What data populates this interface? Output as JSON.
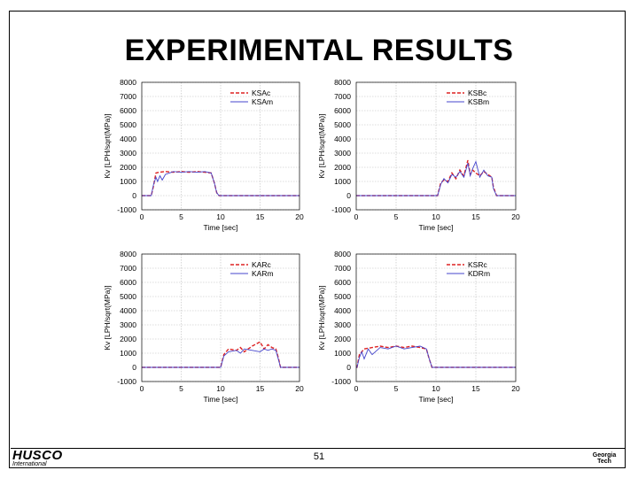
{
  "slide": {
    "title": "EXPERIMENTAL RESULTS",
    "page_number": "51",
    "logo_left": {
      "brand": "HUSCO",
      "sub": "International"
    },
    "logo_right": {
      "line1": "Georgia",
      "line2": "Tech"
    }
  },
  "chart_data": [
    {
      "type": "line",
      "xlabel": "Time [sec]",
      "ylabel": "Kv [LPH/sqrt(MPa)]",
      "xlim": [
        0,
        20
      ],
      "ylim": [
        -1000,
        8000
      ],
      "xticks": [
        0,
        5,
        10,
        15,
        20
      ],
      "yticks": [
        -1000,
        0,
        1000,
        2000,
        3000,
        4000,
        5000,
        6000,
        7000,
        8000
      ],
      "grid": true,
      "legend_position": "top-right",
      "series": [
        {
          "name": "KSAc",
          "color": "#dd2222",
          "style": "dashed",
          "x": [
            0,
            1.2,
            1.5,
            1.8,
            2.2,
            3,
            4,
            5,
            6,
            7,
            8,
            8.8,
            9.2,
            9.5,
            9.8,
            20
          ],
          "y": [
            0,
            0,
            700,
            1600,
            1650,
            1700,
            1650,
            1700,
            1650,
            1700,
            1650,
            1600,
            900,
            200,
            0,
            0
          ]
        },
        {
          "name": "KSAm",
          "color": "#4444cc",
          "style": "solid",
          "x": [
            0,
            1.2,
            1.5,
            1.8,
            2.0,
            2.3,
            2.6,
            3,
            3.5,
            4,
            5,
            6,
            7,
            8,
            8.8,
            9.2,
            9.5,
            9.8,
            20
          ],
          "y": [
            0,
            0,
            800,
            1300,
            1000,
            1400,
            1100,
            1500,
            1600,
            1700,
            1650,
            1700,
            1650,
            1700,
            1600,
            900,
            200,
            0,
            0
          ]
        }
      ]
    },
    {
      "type": "line",
      "xlabel": "Time [sec]",
      "ylabel": "Kv [LPH/sqrt(MPa)]",
      "xlim": [
        0,
        20
      ],
      "ylim": [
        -1000,
        8000
      ],
      "xticks": [
        0,
        5,
        10,
        15,
        20
      ],
      "yticks": [
        -1000,
        0,
        1000,
        2000,
        3000,
        4000,
        5000,
        6000,
        7000,
        8000
      ],
      "grid": true,
      "legend_position": "top-right",
      "series": [
        {
          "name": "KSBc",
          "color": "#dd2222",
          "style": "dashed",
          "x": [
            0,
            10.2,
            10.6,
            11,
            11.5,
            12,
            12.5,
            13,
            13.5,
            14,
            14.3,
            14.6,
            15,
            15.5,
            16,
            16.5,
            17,
            17.2,
            17.6,
            20
          ],
          "y": [
            0,
            0,
            900,
            1100,
            1000,
            1600,
            1200,
            1800,
            1400,
            2500,
            1500,
            1800,
            1600,
            1400,
            1700,
            1500,
            1300,
            600,
            0,
            0
          ]
        },
        {
          "name": "KSBm",
          "color": "#4444cc",
          "style": "solid",
          "x": [
            0,
            10.2,
            10.6,
            11,
            11.5,
            12,
            12.5,
            13,
            13.5,
            14,
            14.3,
            14.6,
            15,
            15.5,
            16,
            16.5,
            17,
            17.2,
            17.6,
            20
          ],
          "y": [
            0,
            0,
            800,
            1200,
            900,
            1500,
            1300,
            1700,
            1300,
            2300,
            1400,
            1900,
            2400,
            1300,
            1800,
            1400,
            1300,
            500,
            0,
            0
          ]
        }
      ]
    },
    {
      "type": "line",
      "xlabel": "Time [sec]",
      "ylabel": "Kv [LPH/sqrt(MPa)]",
      "xlim": [
        0,
        20
      ],
      "ylim": [
        -1000,
        8000
      ],
      "xticks": [
        0,
        5,
        10,
        15,
        20
      ],
      "yticks": [
        -1000,
        0,
        1000,
        2000,
        3000,
        4000,
        5000,
        6000,
        7000,
        8000
      ],
      "grid": true,
      "legend_position": "top-right",
      "series": [
        {
          "name": "KARc",
          "color": "#dd2222",
          "style": "dashed",
          "x": [
            0,
            10,
            10.4,
            11,
            12,
            12.5,
            13,
            14,
            15,
            15.5,
            16,
            16.5,
            17,
            17.3,
            17.6,
            20
          ],
          "y": [
            0,
            0,
            900,
            1300,
            1200,
            1400,
            1100,
            1500,
            1800,
            1300,
            1600,
            1400,
            1300,
            700,
            0,
            0
          ]
        },
        {
          "name": "KARm",
          "color": "#4444cc",
          "style": "solid",
          "x": [
            0,
            10,
            10.4,
            11,
            12,
            12.5,
            13,
            14,
            15,
            15.5,
            16,
            16.5,
            17,
            17.3,
            17.6,
            20
          ],
          "y": [
            0,
            0,
            800,
            1100,
            1200,
            1000,
            1300,
            1200,
            1100,
            1300,
            1200,
            1300,
            1200,
            600,
            0,
            0
          ]
        }
      ]
    },
    {
      "type": "line",
      "xlabel": "Time [sec]",
      "ylabel": "Kv [LPH/sqrt(MPa)]",
      "xlim": [
        0,
        20
      ],
      "ylim": [
        -1000,
        8000
      ],
      "xticks": [
        0,
        5,
        10,
        15,
        20
      ],
      "yticks": [
        -1000,
        0,
        1000,
        2000,
        3000,
        4000,
        5000,
        6000,
        7000,
        8000
      ],
      "grid": true,
      "legend_position": "top-right",
      "series": [
        {
          "name": "KSRc",
          "color": "#dd2222",
          "style": "dashed",
          "x": [
            0,
            0.1,
            0.4,
            1,
            2,
            3,
            4,
            5,
            6,
            7,
            8,
            8.8,
            9.1,
            9.5,
            20
          ],
          "y": [
            0,
            0,
            900,
            1300,
            1400,
            1500,
            1400,
            1500,
            1400,
            1500,
            1400,
            1300,
            700,
            0,
            0
          ]
        },
        {
          "name": "KDRm",
          "color": "#4444cc",
          "style": "solid",
          "x": [
            0,
            0.1,
            0.4,
            0.7,
            1,
            1.5,
            2,
            3,
            4,
            5,
            6,
            7,
            8,
            8.8,
            9.1,
            9.5,
            20
          ],
          "y": [
            0,
            0,
            700,
            1100,
            600,
            1300,
            900,
            1400,
            1300,
            1500,
            1300,
            1400,
            1500,
            1300,
            700,
            0,
            0
          ]
        }
      ]
    }
  ]
}
